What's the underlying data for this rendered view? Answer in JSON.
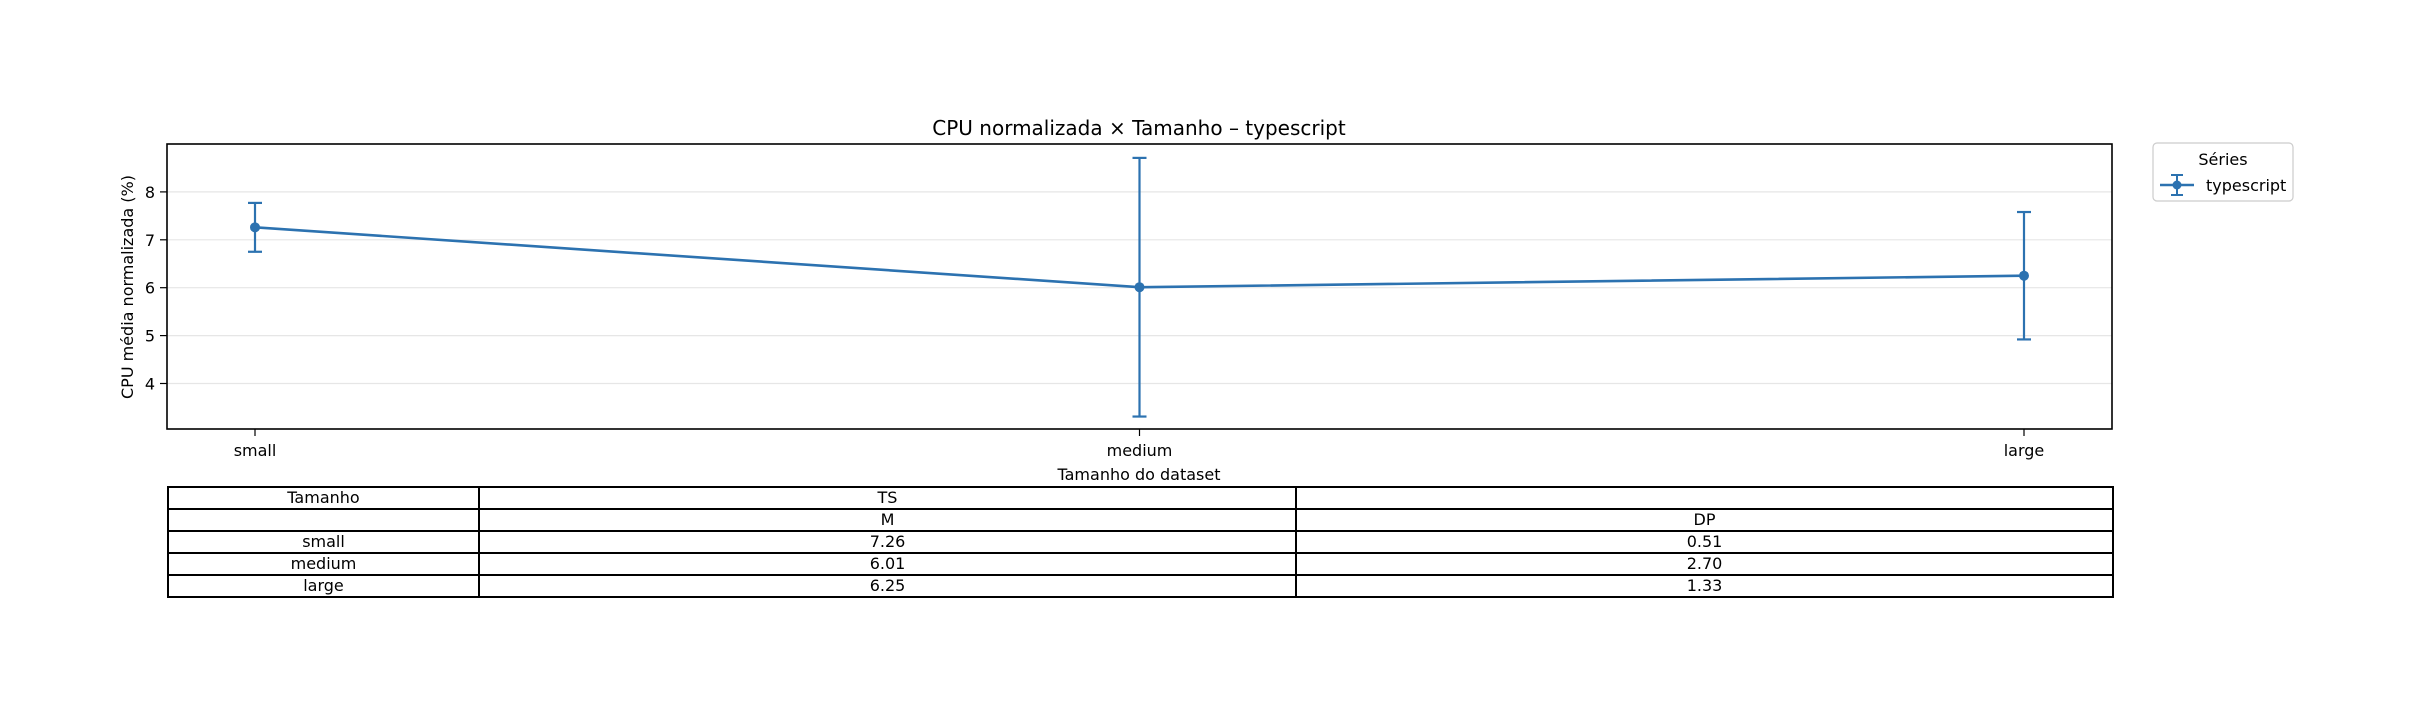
{
  "chart_data": {
    "type": "line",
    "title": "CPU normalizada × Tamanho – typescript",
    "xlabel": "Tamanho do dataset",
    "ylabel": "CPU média normalizada (%)",
    "categories": [
      "small",
      "medium",
      "large"
    ],
    "yticks": [
      4,
      5,
      6,
      7,
      8
    ],
    "ylim": [
      3.05,
      9.0
    ],
    "grid": "horizontal",
    "error_bars": true,
    "legend": {
      "title": "Séries",
      "placement": "outside-top-right"
    },
    "series": [
      {
        "name": "typescript",
        "color": "#2c72b0",
        "values": [
          7.26,
          6.01,
          6.25
        ],
        "errors": [
          0.51,
          2.7,
          1.33
        ]
      }
    ]
  },
  "table": {
    "header1": [
      "Tamanho",
      "TS",
      ""
    ],
    "header2": [
      "",
      "M",
      "DP"
    ],
    "rows": [
      [
        "small",
        "7.26",
        "0.51"
      ],
      [
        "medium",
        "6.01",
        "2.70"
      ],
      [
        "large",
        "6.25",
        "1.33"
      ]
    ]
  }
}
